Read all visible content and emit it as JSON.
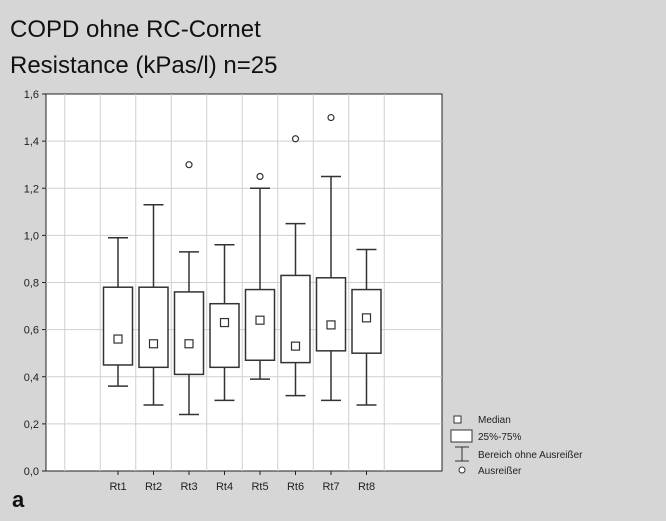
{
  "title_line1": "COPD ohne RC-Cornet",
  "title_line2": "Resistance (kPas/l) n=25",
  "panel_label": "a",
  "chart_data": {
    "type": "boxplot",
    "categories": [
      "Rt1",
      "Rt2",
      "Rt3",
      "Rt4",
      "Rt5",
      "Rt6",
      "Rt7",
      "Rt8"
    ],
    "ylim": [
      0,
      1.6
    ],
    "yticks": [
      "0,0",
      "0,2",
      "0,4",
      "0,6",
      "0,8",
      "1,0",
      "1,2",
      "1,4",
      "1,6"
    ],
    "grid": true,
    "legend_position": "bottom-right",
    "legend": {
      "median": "Median",
      "box": "25%-75%",
      "whisker": "Bereich ohne Ausreißer",
      "outlier": "Ausreißer"
    },
    "boxes": [
      {
        "category": "Rt1",
        "median": 0.56,
        "q1": 0.45,
        "q3": 0.78,
        "whisker_low": 0.36,
        "whisker_high": 0.99,
        "outliers": []
      },
      {
        "category": "Rt2",
        "median": 0.54,
        "q1": 0.44,
        "q3": 0.78,
        "whisker_low": 0.28,
        "whisker_high": 1.13,
        "outliers": []
      },
      {
        "category": "Rt3",
        "median": 0.54,
        "q1": 0.41,
        "q3": 0.76,
        "whisker_low": 0.24,
        "whisker_high": 0.93,
        "outliers": [
          1.3
        ]
      },
      {
        "category": "Rt4",
        "median": 0.63,
        "q1": 0.44,
        "q3": 0.71,
        "whisker_low": 0.3,
        "whisker_high": 0.96,
        "outliers": []
      },
      {
        "category": "Rt5",
        "median": 0.64,
        "q1": 0.47,
        "q3": 0.77,
        "whisker_low": 0.39,
        "whisker_high": 1.2,
        "outliers": [
          1.25
        ]
      },
      {
        "category": "Rt6",
        "median": 0.53,
        "q1": 0.46,
        "q3": 0.83,
        "whisker_low": 0.32,
        "whisker_high": 1.05,
        "outliers": [
          1.41
        ]
      },
      {
        "category": "Rt7",
        "median": 0.62,
        "q1": 0.51,
        "q3": 0.82,
        "whisker_low": 0.3,
        "whisker_high": 1.25,
        "outliers": [
          1.5
        ]
      },
      {
        "category": "Rt8",
        "median": 0.65,
        "q1": 0.5,
        "q3": 0.77,
        "whisker_low": 0.28,
        "whisker_high": 0.94,
        "outliers": []
      }
    ]
  }
}
